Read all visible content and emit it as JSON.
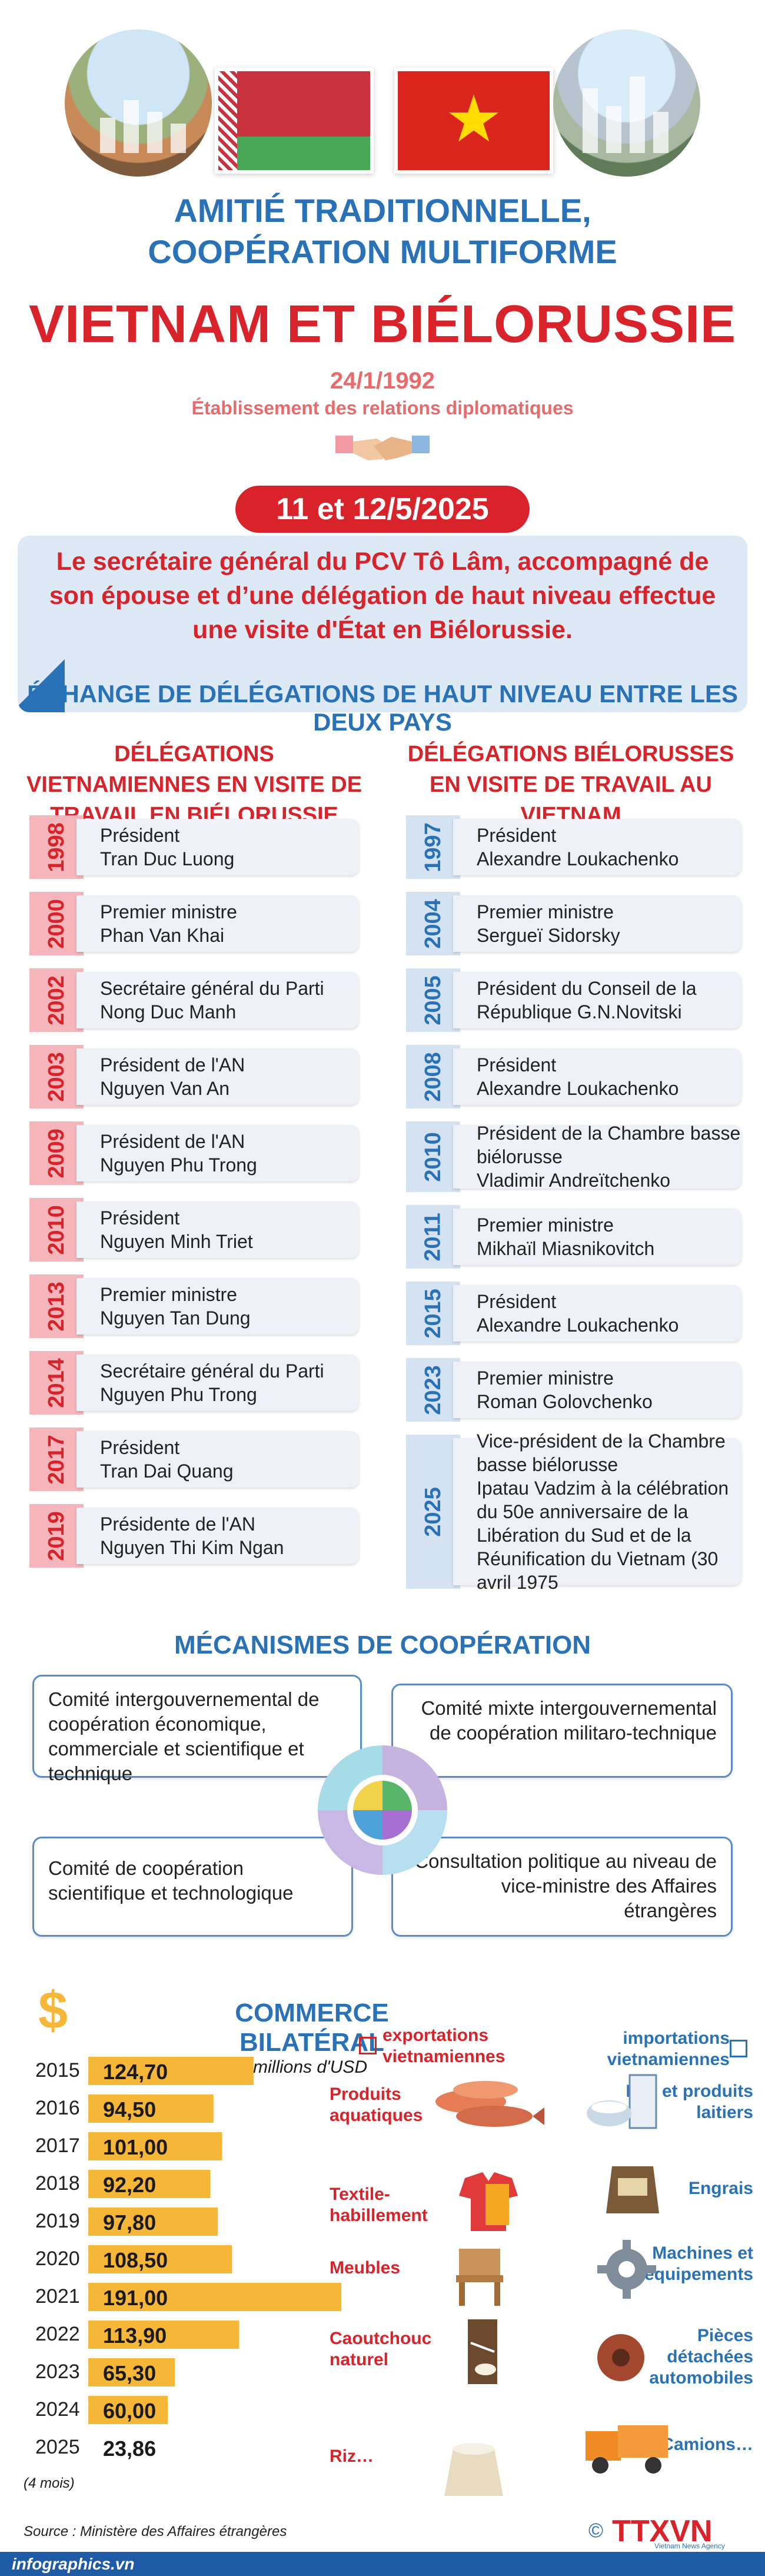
{
  "header": {
    "title_line1": "AMITIÉ  TRADITIONNELLE,",
    "title_line2": "COOPÉRATION MULTIFORME",
    "main_title": "VIETNAM ET BIÉLORUSSIE",
    "est_date": "24/1/1992",
    "est_label": "Établissement des relations diplomatiques",
    "visit_date": "11 et 12/5/2025",
    "visit_text": "Le secrétaire général du PCV Tô Lâm, accompagné de son épouse et d’une délégation de haut niveau effectue une visite d'État en Biélorussie."
  },
  "exchange": {
    "section_title": "ÉCHANGE DE DÉLÉGATIONS DE HAUT NIVEAU ENTRE LES DEUX PAYS",
    "vn_title": "DÉLÉGATIONS VIETNAMIENNES EN VISITE DE TRAVAIL EN BIÉLORUSSIE",
    "by_title": "DÉLÉGATIONS BIÉLORUSSES EN VISITE DE TRAVAIL AU VIETNAM",
    "vn": [
      {
        "year": "1998",
        "lines": [
          "Président",
          "Tran Duc Luong"
        ]
      },
      {
        "year": "2000",
        "lines": [
          "Premier ministre",
          "Phan Van Khai"
        ]
      },
      {
        "year": "2002",
        "lines": [
          "Secrétaire général du Parti",
          "Nong Duc Manh"
        ]
      },
      {
        "year": "2003",
        "lines": [
          "Président de l'AN",
          "Nguyen Van An"
        ]
      },
      {
        "year": "2009",
        "lines": [
          "Président de l'AN",
          "Nguyen Phu Trong"
        ]
      },
      {
        "year": "2010",
        "lines": [
          "Président",
          "Nguyen Minh Triet"
        ]
      },
      {
        "year": "2013",
        "lines": [
          "Premier ministre",
          "Nguyen Tan Dung"
        ]
      },
      {
        "year": "2014",
        "lines": [
          "Secrétaire général du Parti",
          "Nguyen Phu Trong"
        ]
      },
      {
        "year": "2017",
        "lines": [
          "Président",
          "Tran Dai Quang"
        ]
      },
      {
        "year": "2019",
        "lines": [
          "Présidente de l'AN",
          "Nguyen Thi Kim Ngan"
        ]
      }
    ],
    "by": [
      {
        "year": "1997",
        "lines": [
          "Président",
          "Alexandre Loukachenko"
        ]
      },
      {
        "year": "2004",
        "lines": [
          "Premier ministre",
          "Sergueï Sidorsky"
        ]
      },
      {
        "year": "2005",
        "lines": [
          "Président du Conseil de la",
          "République G.N.Novitski"
        ]
      },
      {
        "year": "2008",
        "lines": [
          "Président",
          "Alexandre Loukachenko"
        ]
      },
      {
        "year": "2010",
        "lines": [
          "Président de la Chambre basse",
          "biélorusse",
          "Vladimir Andreïtchenko"
        ]
      },
      {
        "year": "2011",
        "lines": [
          "Premier ministre",
          "Mikhaïl Miasnikovitch"
        ]
      },
      {
        "year": "2015",
        "lines": [
          "Président",
          "Alexandre Loukachenko"
        ]
      },
      {
        "year": "2023",
        "lines": [
          "Premier ministre",
          "Roman Golovchenko"
        ]
      },
      {
        "year": "2025",
        "lines": [
          "Vice-président de la Chambre",
          "basse biélorusse",
          "Ipatau Vadzim à la célébration",
          "du 50e anniversaire de la",
          "Libération du Sud et de la",
          "Réunification du Vietnam (30",
          "avril 1975"
        ]
      }
    ]
  },
  "mechanisms": {
    "title": "MÉCANISMES DE COOPÉRATION",
    "items": [
      "Comité intergouvernemental de coopération économique, commerciale et scientifique et technique",
      "Comité mixte intergouvernemental de coopération militaro-technique",
      "Comité de coopération scientifique et technologique",
      "Consultation politique au niveau de vice-ministre des Affaires étrangères"
    ]
  },
  "trade": {
    "title": "COMMERCE BILATÉRAL",
    "unit": "millions d'USD",
    "note_2025": "(4 mois)",
    "export_legend": "exportations vietnamiennes",
    "import_legend": "importations vietnamiennes",
    "exports": [
      "Produits aquatiques",
      "Textile-habillement",
      "Meubles",
      "Caoutchouc naturel",
      "Riz…"
    ],
    "imports": [
      "Lait et produits laitiers",
      "Engrais",
      "Machines et équipements",
      "Pièces détachées automobiles",
      "Camions…"
    ]
  },
  "chart_data": {
    "type": "bar",
    "title": "COMMERCE BILATÉRAL",
    "categories": [
      "2015",
      "2016",
      "2017",
      "2018",
      "2019",
      "2020",
      "2021",
      "2022",
      "2023",
      "2024",
      "2025"
    ],
    "values": [
      124.7,
      94.5,
      101.0,
      92.2,
      97.8,
      108.5,
      191.0,
      113.9,
      65.3,
      60.0,
      23.86
    ],
    "labels": [
      "124,70",
      "94,50",
      "101,00",
      "92,20",
      "97,80",
      "108,50",
      "191,00",
      "113,90",
      "65,30",
      "60,00",
      "23,86"
    ],
    "orientation": "horizontal",
    "color": "#f6b738"
  },
  "footer": {
    "source": "Source : Ministère des Affaires étrangères",
    "site": "infographics.vn",
    "agency": "TTXVN",
    "agency_sub": "Vietnam News Agency"
  }
}
